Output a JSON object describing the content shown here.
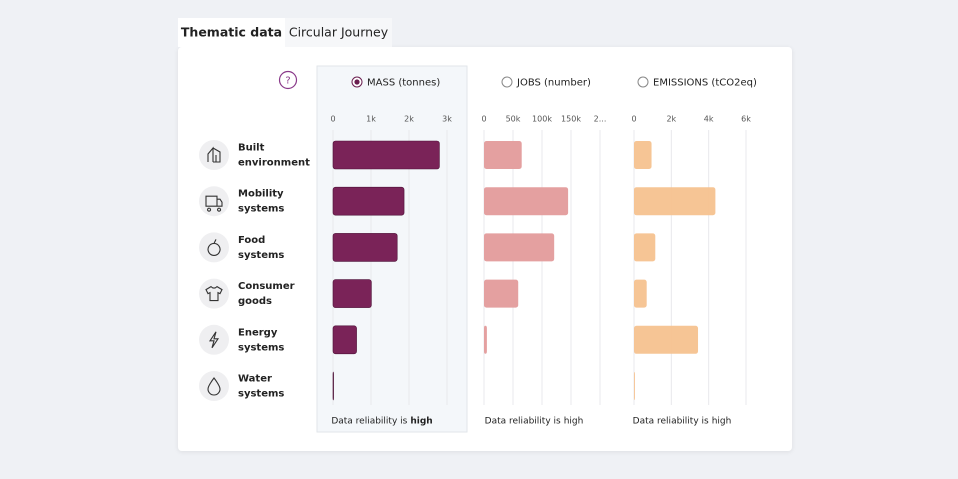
{
  "tabs": [
    {
      "label": "Thematic data",
      "active": true
    },
    {
      "label": "Circular Journey",
      "active": false
    }
  ],
  "help_label": "?",
  "sectors": [
    [
      "Built",
      "environment"
    ],
    [
      "Mobility",
      "systems"
    ],
    [
      "Food",
      "systems"
    ],
    [
      "Consumer",
      "goods"
    ],
    [
      "Energy",
      "systems"
    ],
    [
      "Water",
      "systems"
    ]
  ],
  "chart_data": [
    {
      "type": "bar",
      "orientation": "horizontal",
      "title": "MASS (tonnes)",
      "selected": true,
      "color": "#7a2358",
      "values": [
        2800,
        1870,
        1690,
        1010,
        620,
        15
      ],
      "xlim": [
        0,
        3000
      ],
      "xticks": [
        0,
        {
          "value": 1000,
          "label": "1k"
        },
        {
          "value": 2000,
          "label": "2k"
        },
        {
          "value": 3000,
          "label": "3k"
        }
      ],
      "grid": true,
      "reliability_prefix": "Data reliability is",
      "reliability_level": "high"
    },
    {
      "type": "bar",
      "orientation": "horizontal",
      "title": "JOBS (number)",
      "selected": false,
      "color": "#e39b9b",
      "values": [
        65000,
        145000,
        121000,
        59000,
        5000,
        0
      ],
      "xlim": [
        0,
        200000
      ],
      "xticks": [
        0,
        {
          "value": 50000,
          "label": "50k"
        },
        {
          "value": 100000,
          "label": "100k"
        },
        {
          "value": 150000,
          "label": "150k"
        },
        {
          "value": 200000,
          "label": "2..."
        }
      ],
      "grid": true,
      "reliability_prefix": "Data reliability is",
      "reliability_level": "high"
    },
    {
      "type": "bar",
      "orientation": "horizontal",
      "title": "EMISSIONS (tCO2eq)",
      "selected": false,
      "color": "#f6c28f",
      "values": [
        940,
        4360,
        1140,
        680,
        3430,
        50
      ],
      "xlim": [
        0,
        6000
      ],
      "xticks": [
        0,
        {
          "value": 2000,
          "label": "2k"
        },
        {
          "value": 4000,
          "label": "4k"
        },
        {
          "value": 6000,
          "label": "6k"
        }
      ],
      "grid": true,
      "reliability_prefix": "Data reliability is",
      "reliability_level": "high"
    }
  ]
}
